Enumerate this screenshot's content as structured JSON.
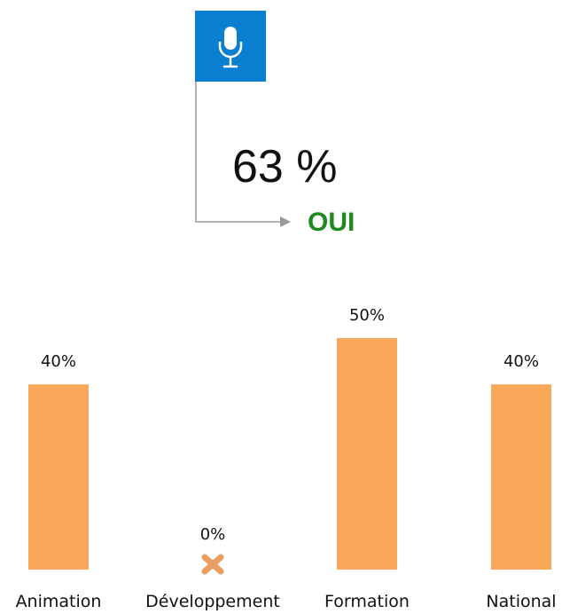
{
  "stat": "63 %",
  "answer": "OUI",
  "chart_data": {
    "type": "bar",
    "categories": [
      "Animation",
      "Développement",
      "Formation",
      "National"
    ],
    "values": [
      40,
      0,
      50,
      40
    ],
    "value_labels": [
      "40%",
      "0%",
      "50%",
      "40%"
    ],
    "color": "#f9a85a",
    "ylim": [
      0,
      50
    ]
  }
}
